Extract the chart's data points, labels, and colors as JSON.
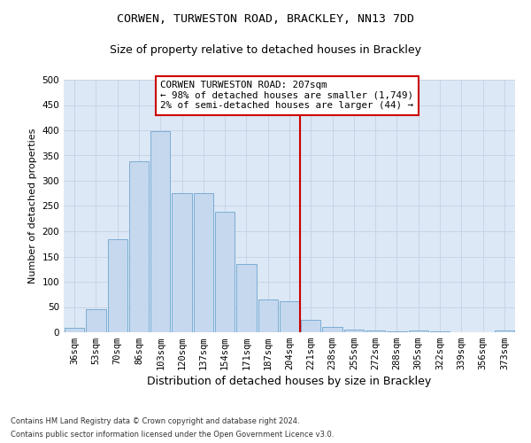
{
  "title1": "CORWEN, TURWESTON ROAD, BRACKLEY, NN13 7DD",
  "title2": "Size of property relative to detached houses in Brackley",
  "xlabel": "Distribution of detached houses by size in Brackley",
  "ylabel": "Number of detached properties",
  "footnote1": "Contains HM Land Registry data © Crown copyright and database right 2024.",
  "footnote2": "Contains public sector information licensed under the Open Government Licence v3.0.",
  "bin_labels": [
    "36sqm",
    "53sqm",
    "70sqm",
    "86sqm",
    "103sqm",
    "120sqm",
    "137sqm",
    "154sqm",
    "171sqm",
    "187sqm",
    "204sqm",
    "221sqm",
    "238sqm",
    "255sqm",
    "272sqm",
    "288sqm",
    "305sqm",
    "322sqm",
    "339sqm",
    "356sqm",
    "373sqm"
  ],
  "bar_heights": [
    8,
    46,
    185,
    338,
    398,
    276,
    276,
    238,
    135,
    65,
    62,
    25,
    10,
    5,
    3,
    2,
    3,
    1,
    0,
    0,
    3
  ],
  "bar_color": "#c5d8ee",
  "bar_edge_color": "#7badd4",
  "vline_color": "#cc0000",
  "annotation_text": "CORWEN TURWESTON ROAD: 207sqm\n← 98% of detached houses are smaller (1,749)\n2% of semi-detached houses are larger (44) →",
  "annotation_box_facecolor": "#ffffff",
  "annotation_box_edgecolor": "#cc0000",
  "ylim": [
    0,
    500
  ],
  "yticks": [
    0,
    50,
    100,
    150,
    200,
    250,
    300,
    350,
    400,
    450,
    500
  ],
  "grid_color": "#c8d4e8",
  "background_color": "#dce8f5",
  "title1_fontsize": 9.5,
  "title2_fontsize": 9.0,
  "ylabel_fontsize": 8.0,
  "xlabel_fontsize": 9.0,
  "tick_fontsize": 7.5,
  "footnote_fontsize": 6.0
}
